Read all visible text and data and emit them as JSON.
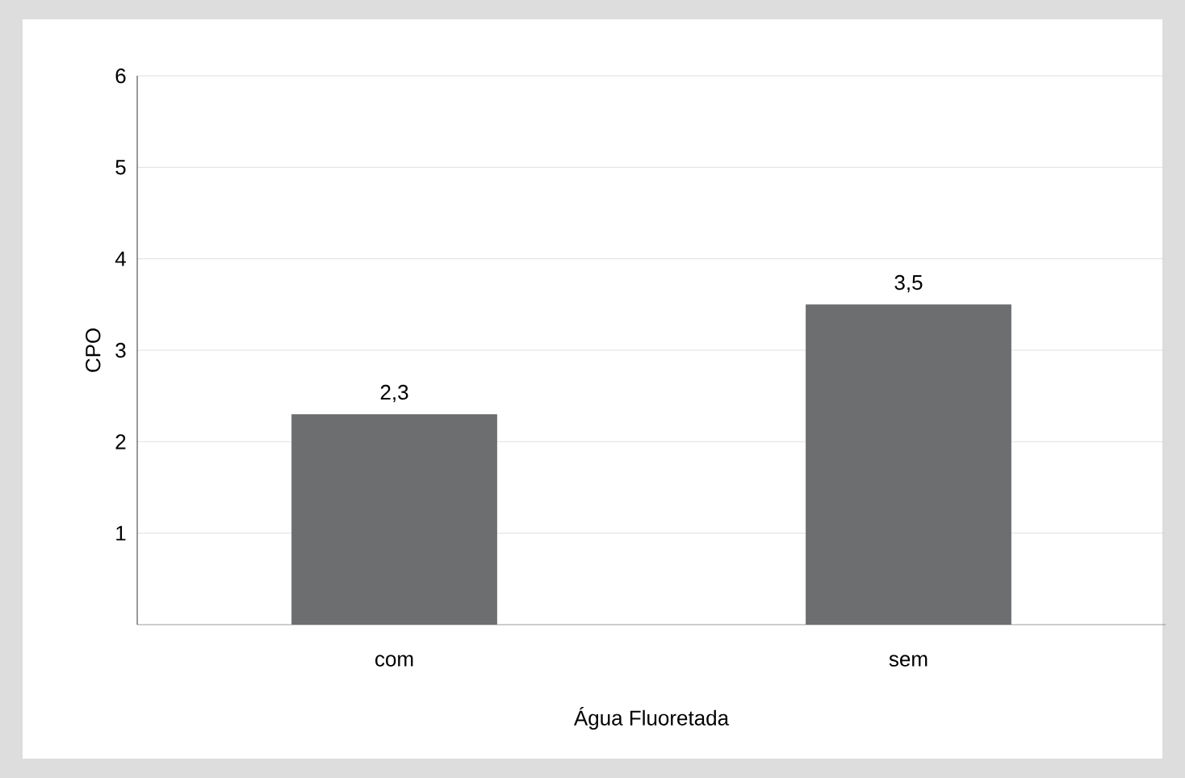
{
  "chart_data": {
    "type": "bar",
    "xlabel": "Água  Fluoretada",
    "ylabel": "CPO",
    "categories": [
      "com",
      "sem"
    ],
    "values": [
      2.3,
      3.5
    ],
    "value_labels": [
      "2,3",
      "3,5"
    ],
    "color": "#6d6e70",
    "ylim": [
      0,
      6
    ],
    "yticks": [
      1,
      2,
      3,
      4,
      5,
      6
    ],
    "grid": "y"
  }
}
